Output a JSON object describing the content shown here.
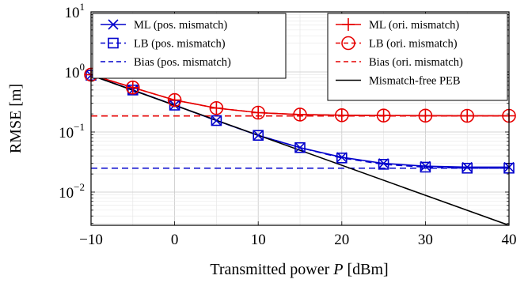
{
  "chart_data": {
    "type": "line",
    "xlabel": "Transmitted power",
    "xlabel_var": "P",
    "xlabel_unit": "[dBm]",
    "ylabel": "RMSE [m]",
    "x_scale": "linear",
    "y_scale": "log",
    "xlim": [
      -10,
      40
    ],
    "ylim": [
      0.0028,
      10
    ],
    "grid": true,
    "x_ticks": [
      -10,
      0,
      10,
      20,
      30,
      40
    ],
    "x_tick_labels": [
      "−10",
      "0",
      "10",
      "20",
      "30",
      "40"
    ],
    "y_ticks": [
      {
        "value": 0.01,
        "base": "10",
        "exp": "−2"
      },
      {
        "value": 0.1,
        "base": "10",
        "exp": "−1"
      },
      {
        "value": 1,
        "base": "10",
        "exp": "0"
      },
      {
        "value": 10,
        "base": "10",
        "exp": "1"
      }
    ],
    "legend_left_position": "top-left",
    "legend_right_position": "top-right",
    "series": [
      {
        "name": "ML (pos. mismatch)",
        "group": "left",
        "color": "#0000cc",
        "dash": "solid",
        "marker": "x",
        "x": [
          -10,
          -5,
          0,
          5,
          10,
          15,
          20,
          25,
          30,
          35,
          40
        ],
        "y": [
          0.88,
          0.5,
          0.28,
          0.155,
          0.088,
          0.055,
          0.038,
          0.03,
          0.027,
          0.026,
          0.026
        ]
      },
      {
        "name": "LB (pos. mismatch)",
        "group": "left",
        "color": "#0000cc",
        "dash": "dashed",
        "marker": "square",
        "x": [
          -10,
          -5,
          0,
          5,
          10,
          15,
          20,
          25,
          30,
          35,
          40
        ],
        "y": [
          0.88,
          0.5,
          0.28,
          0.155,
          0.088,
          0.055,
          0.037,
          0.029,
          0.026,
          0.025,
          0.025
        ]
      },
      {
        "name": "Bias (pos. mismatch)",
        "group": "left",
        "color": "#0000cc",
        "dash": "dashed",
        "marker": "none",
        "x": [
          -10,
          40
        ],
        "y": [
          0.025,
          0.025
        ]
      },
      {
        "name": "ML (ori. mismatch)",
        "group": "right",
        "color": "#e60000",
        "dash": "solid",
        "marker": "plus",
        "x": [
          -10,
          -5,
          0,
          5,
          10,
          15,
          20,
          25,
          30,
          35,
          40
        ],
        "y": [
          0.9,
          0.55,
          0.34,
          0.25,
          0.21,
          0.195,
          0.19,
          0.188,
          0.187,
          0.186,
          0.186
        ]
      },
      {
        "name": "LB (ori. mismatch)",
        "group": "right",
        "color": "#e60000",
        "dash": "dashed",
        "marker": "circle-plus",
        "x": [
          -10,
          -5,
          0,
          5,
          10,
          15,
          20,
          25,
          30,
          35,
          40
        ],
        "y": [
          0.9,
          0.55,
          0.34,
          0.25,
          0.21,
          0.195,
          0.19,
          0.188,
          0.187,
          0.186,
          0.186
        ]
      },
      {
        "name": "Bias (ori. mismatch)",
        "group": "right",
        "color": "#e60000",
        "dash": "dashed",
        "marker": "none",
        "x": [
          -10,
          40
        ],
        "y": [
          0.185,
          0.185
        ]
      },
      {
        "name": "Mismatch-free PEB",
        "group": "right",
        "color": "#000000",
        "dash": "solid",
        "marker": "none",
        "x": [
          -10,
          40
        ],
        "y": [
          0.88,
          0.0028
        ]
      }
    ]
  }
}
